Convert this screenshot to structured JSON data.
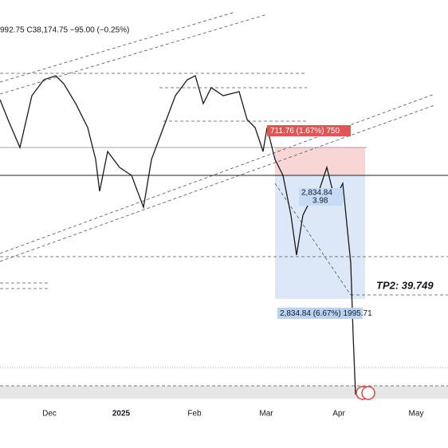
{
  "header": {
    "ohlc": "992.75  C38,174.75  −95.00 (−0.25%)"
  },
  "x_axis": {
    "labels": [
      "Dec",
      "2025",
      "Feb",
      "Mar",
      "Apr",
      "May"
    ]
  },
  "annotations": {
    "short_label": "711.76 (1.67%) 750",
    "long_label": "2,834.84 (6.67%) 1995.71",
    "inner_label_1": "2,834.84",
    "inner_label_2": "3.98",
    "target": "TP2: 39.749"
  }
}
